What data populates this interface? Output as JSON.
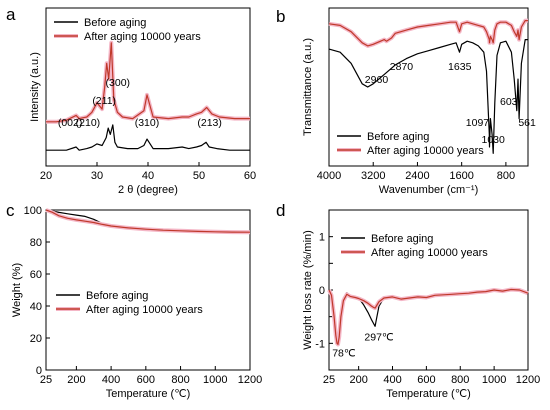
{
  "colors": {
    "before": "#000000",
    "after": "#c0392b",
    "after_shadow": "#f4b6c6",
    "axis": "#000000"
  },
  "chart_data": [
    {
      "panel": "a",
      "type": "line",
      "xlabel": "2 θ (degree)",
      "ylabel": "Intensity (a.u.)",
      "xlim": [
        20,
        60
      ],
      "xticks": [
        20,
        30,
        40,
        50,
        60
      ],
      "series": [
        {
          "name": "Before aging",
          "key": "before",
          "x": [
            20,
            22,
            24,
            25.9,
            26.5,
            28,
            29,
            30,
            31,
            31.8,
            32.2,
            32.6,
            33.1,
            33.5,
            34,
            36,
            38,
            39.2,
            39.8,
            41,
            44,
            46.7,
            48,
            49.5,
            50.5,
            51.4,
            52,
            53.5,
            56,
            60
          ],
          "y": [
            0.1,
            0.1,
            0.1,
            0.12,
            0.1,
            0.11,
            0.12,
            0.14,
            0.13,
            0.18,
            0.24,
            0.2,
            0.26,
            0.15,
            0.12,
            0.11,
            0.11,
            0.13,
            0.17,
            0.11,
            0.11,
            0.12,
            0.11,
            0.12,
            0.13,
            0.15,
            0.12,
            0.11,
            0.1,
            0.1
          ]
        },
        {
          "name": "After aging 10000 years",
          "key": "after",
          "x": [
            20,
            22,
            24,
            25.9,
            26.5,
            28,
            29,
            30,
            31,
            31.5,
            31.9,
            32.3,
            32.8,
            33.3,
            34,
            35,
            37,
            39.2,
            39.8,
            41,
            44,
            46.7,
            48,
            49.5,
            50.5,
            51.5,
            52.5,
            54,
            57,
            60
          ],
          "y": [
            0.28,
            0.28,
            0.29,
            0.32,
            0.3,
            0.31,
            0.34,
            0.4,
            0.36,
            0.5,
            0.65,
            0.55,
            0.78,
            0.42,
            0.34,
            0.31,
            0.3,
            0.35,
            0.45,
            0.31,
            0.3,
            0.31,
            0.31,
            0.33,
            0.34,
            0.37,
            0.33,
            0.31,
            0.3,
            0.3
          ]
        }
      ],
      "annotations": [
        "(002)",
        "(210)",
        "(211)",
        "(300)",
        "(310)",
        "(213)"
      ],
      "annotation_x": [
        25.9,
        29,
        31.8,
        32.9,
        39.8,
        51.3
      ]
    },
    {
      "panel": "b",
      "type": "line",
      "xlabel": "Wavenumber (cm⁻¹)",
      "ylabel": "Transmittance (a.u.)",
      "xlim": [
        4000,
        400
      ],
      "xticks": [
        4000,
        3200,
        2400,
        1600,
        800
      ],
      "series": [
        {
          "name": "Before aging",
          "key": "before",
          "x": [
            4000,
            3800,
            3600,
            3400,
            3300,
            3200,
            3000,
            2800,
            2600,
            2400,
            2200,
            2000,
            1800,
            1700,
            1640,
            1600,
            1500,
            1400,
            1300,
            1200,
            1150,
            1100,
            1097,
            1080,
            1050,
            1030,
            1000,
            960,
            900,
            800,
            700,
            650,
            603,
            580,
            561,
            520,
            450,
            400
          ],
          "y": [
            0.74,
            0.72,
            0.65,
            0.52,
            0.5,
            0.52,
            0.58,
            0.64,
            0.68,
            0.71,
            0.73,
            0.75,
            0.77,
            0.78,
            0.72,
            0.77,
            0.79,
            0.78,
            0.76,
            0.72,
            0.6,
            0.2,
            0.12,
            0.3,
            0.2,
            0.08,
            0.4,
            0.7,
            0.78,
            0.79,
            0.72,
            0.55,
            0.35,
            0.55,
            0.3,
            0.65,
            0.8,
            0.8
          ]
        },
        {
          "name": "After aging 10000 years",
          "key": "after",
          "x": [
            4000,
            3800,
            3600,
            3400,
            3300,
            3200,
            3000,
            2960,
            2870,
            2800,
            2600,
            2400,
            2200,
            2000,
            1800,
            1700,
            1640,
            1600,
            1500,
            1400,
            1300,
            1200,
            1150,
            1100,
            1097,
            1080,
            1050,
            1030,
            1000,
            960,
            900,
            800,
            700,
            650,
            603,
            580,
            561,
            520,
            450,
            400
          ],
          "y": [
            0.9,
            0.89,
            0.85,
            0.78,
            0.76,
            0.77,
            0.8,
            0.79,
            0.81,
            0.84,
            0.86,
            0.88,
            0.89,
            0.9,
            0.91,
            0.91,
            0.85,
            0.9,
            0.91,
            0.9,
            0.89,
            0.88,
            0.85,
            0.8,
            0.78,
            0.82,
            0.8,
            0.78,
            0.86,
            0.9,
            0.91,
            0.91,
            0.89,
            0.85,
            0.82,
            0.86,
            0.8,
            0.88,
            0.92,
            0.92
          ]
        }
      ],
      "annotations": [
        "2960",
        "2870",
        "1635",
        "1097",
        "1030",
        "603",
        "561"
      ],
      "annotation_x": [
        2960,
        2870,
        1635,
        1097,
        1030,
        603,
        561
      ]
    },
    {
      "panel": "c",
      "type": "line",
      "xlabel": "Temperature (℃)",
      "ylabel": "Weight (%)",
      "xlim": [
        25,
        1200
      ],
      "ylim": [
        0,
        100
      ],
      "xticks": [
        25,
        200,
        400,
        600,
        800,
        1000,
        1200
      ],
      "yticks": [
        0,
        20,
        40,
        60,
        80,
        100
      ],
      "series": [
        {
          "name": "Before aging",
          "key": "before",
          "x": [
            25,
            60,
            100,
            150,
            200,
            250,
            300,
            350,
            400,
            500,
            600,
            700,
            800,
            900,
            1000,
            1100,
            1200
          ],
          "y": [
            100,
            99.4,
            98.5,
            97.6,
            96.8,
            96.0,
            94.2,
            91.5,
            90.2,
            89.2,
            88.4,
            88.0,
            87.6,
            87.2,
            86.9,
            86.7,
            86.6
          ]
        },
        {
          "name": "After aging 10000 years",
          "key": "after",
          "x": [
            25,
            60,
            100,
            150,
            200,
            250,
            300,
            350,
            400,
            500,
            600,
            700,
            800,
            900,
            1000,
            1100,
            1200
          ],
          "y": [
            100,
            98.6,
            96.4,
            94.8,
            93.8,
            93.0,
            92.2,
            91.0,
            90.0,
            88.8,
            88.0,
            87.4,
            87.0,
            86.6,
            86.4,
            86.2,
            86.1
          ]
        }
      ]
    },
    {
      "panel": "d",
      "type": "line",
      "xlabel": "Temperature (℃)",
      "ylabel": "Weight loss rate (%/min)",
      "xlim": [
        25,
        1200
      ],
      "ylim": [
        -1.5,
        1.5
      ],
      "xticks": [
        25,
        200,
        400,
        600,
        800,
        1000,
        1200
      ],
      "yticks": [
        -1,
        -0.5,
        0,
        0.5,
        1
      ],
      "ytick_labels": [
        "-1",
        "",
        "0",
        "",
        "1"
      ],
      "series": [
        {
          "name": "Before aging",
          "key": "before",
          "x": [
            25,
            40,
            55,
            65,
            72,
            78,
            85,
            95,
            110,
            130,
            150,
            180,
            200,
            230,
            255,
            275,
            290,
            297,
            305,
            320,
            350,
            400,
            450,
            500,
            550,
            600,
            650,
            700,
            750,
            800,
            850,
            900,
            950,
            1000,
            1050,
            1100,
            1150,
            1200
          ],
          "y": [
            0,
            -0.08,
            -0.4,
            -0.7,
            -0.85,
            -0.9,
            -0.75,
            -0.4,
            -0.15,
            -0.05,
            -0.1,
            -0.12,
            -0.15,
            -0.28,
            -0.42,
            -0.55,
            -0.64,
            -0.68,
            -0.55,
            -0.3,
            -0.15,
            -0.12,
            -0.18,
            -0.15,
            -0.12,
            -0.14,
            -0.1,
            -0.08,
            -0.08,
            -0.06,
            -0.05,
            -0.04,
            -0.03,
            0.02,
            -0.02,
            0.03,
            0.01,
            -0.08
          ]
        },
        {
          "name": "After aging 10000 years",
          "key": "after",
          "x": [
            25,
            40,
            55,
            65,
            72,
            78,
            85,
            95,
            110,
            130,
            150,
            180,
            200,
            230,
            255,
            275,
            290,
            297,
            305,
            320,
            350,
            400,
            450,
            500,
            550,
            600,
            650,
            700,
            750,
            800,
            850,
            900,
            950,
            1000,
            1050,
            1100,
            1150,
            1200
          ],
          "y": [
            0,
            -0.1,
            -0.5,
            -0.85,
            -1.0,
            -1.02,
            -0.88,
            -0.5,
            -0.2,
            -0.08,
            -0.12,
            -0.14,
            -0.16,
            -0.2,
            -0.25,
            -0.3,
            -0.33,
            -0.34,
            -0.3,
            -0.22,
            -0.15,
            -0.13,
            -0.17,
            -0.15,
            -0.13,
            -0.14,
            -0.1,
            -0.09,
            -0.08,
            -0.07,
            -0.06,
            -0.04,
            -0.03,
            0.0,
            -0.02,
            0.01,
            0.0,
            -0.06
          ]
        }
      ],
      "annotations": [
        "78℃",
        "297℃"
      ],
      "annotation_x": [
        78,
        297
      ]
    }
  ]
}
